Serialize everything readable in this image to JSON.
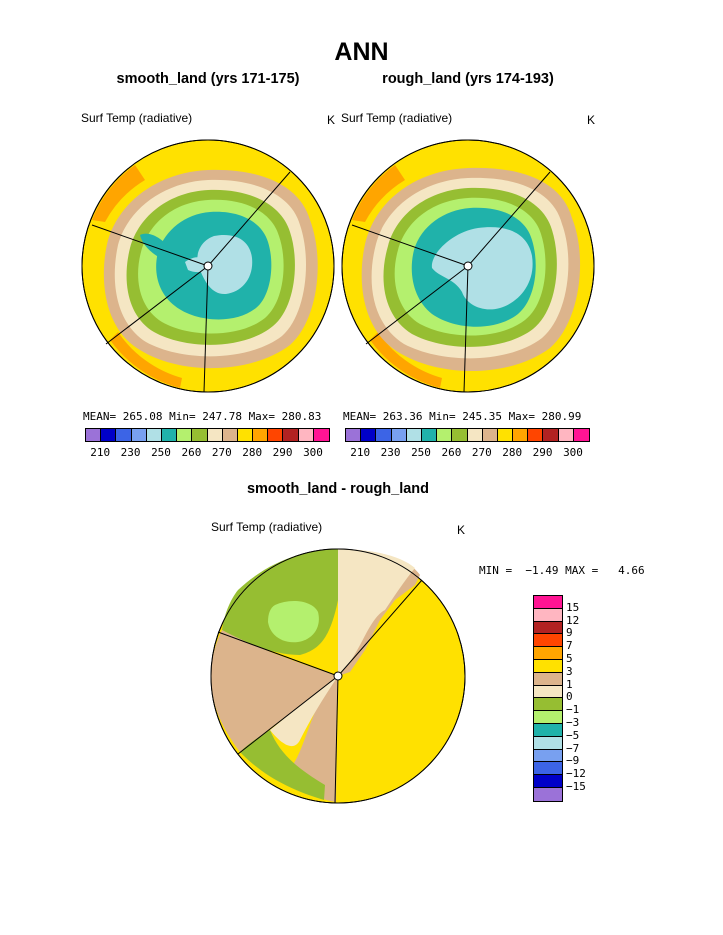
{
  "main_title": "ANN",
  "panels": [
    {
      "title": "smooth_land (yrs 171-175)",
      "variable": "Surf Temp (radiative)",
      "units": "K",
      "stats": "MEAN= 265.08  Min= 247.78  Max= 280.83"
    },
    {
      "title": "rough_land (yrs 174-193)",
      "variable": "Surf Temp (radiative)",
      "units": "K",
      "stats": "MEAN= 263.36  Min= 245.35  Max= 280.99"
    }
  ],
  "diff_panel": {
    "title": "smooth_land - rough_land",
    "variable": "Surf Temp (radiative)",
    "units": "K",
    "minmax": "MIN =  −1.49 MAX =   4.66"
  },
  "colorbar_top": {
    "colors": [
      "#9b72d8",
      "#0000c8",
      "#3c64e6",
      "#78a0f0",
      "#b0e0e6",
      "#20b2aa",
      "#b4f06e",
      "#96be32",
      "#f5e6c3",
      "#dcb48c",
      "#ffe100",
      "#ffa500",
      "#ff4500",
      "#b22222",
      "#ffb6c1",
      "#ff1493"
    ],
    "labels": [
      "210",
      "230",
      "250",
      "260",
      "270",
      "280",
      "290",
      "300"
    ]
  },
  "colorbar_diff": {
    "colors": [
      "#ff1493",
      "#ffb6c1",
      "#b22222",
      "#ff4500",
      "#ffa500",
      "#ffe100",
      "#dcb48c",
      "#f5e6c3",
      "#96be32",
      "#b4f06e",
      "#20b2aa",
      "#b0e0e6",
      "#78a0f0",
      "#3c64e6",
      "#0000c8",
      "#9b72d8"
    ],
    "labels": [
      "15",
      "12",
      "9",
      "7",
      "5",
      "3",
      "1",
      "0",
      "−1",
      "−3",
      "−5",
      "−7",
      "−9",
      "−12",
      "−15"
    ]
  }
}
